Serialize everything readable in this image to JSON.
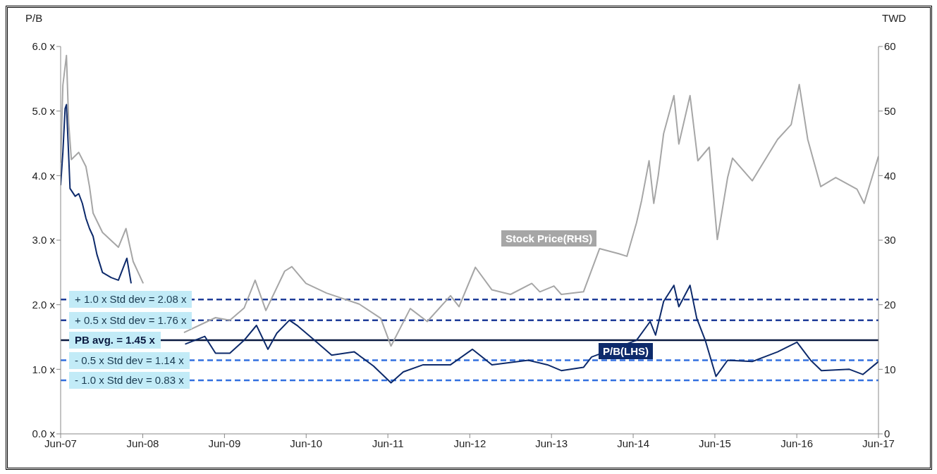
{
  "chart_data": {
    "type": "line",
    "ylabel": "P/B",
    "y2label": "TWD",
    "legend": false,
    "grid": false,
    "marker": "none",
    "line_style": "solid",
    "xlim": [
      "2007-06-29",
      "2017-06-30"
    ],
    "xticks": [
      {
        "value": "2007-06-29",
        "label": "Jun-07"
      },
      {
        "value": "2008-06-30",
        "label": "Jun-08"
      },
      {
        "value": "2009-06-30",
        "label": "Jun-09"
      },
      {
        "value": "2010-06-30",
        "label": "Jun-10"
      },
      {
        "value": "2011-06-30",
        "label": "Jun-11"
      },
      {
        "value": "2012-06-30",
        "label": "Jun-12"
      },
      {
        "value": "2013-06-30",
        "label": "Jun-13"
      },
      {
        "value": "2014-06-30",
        "label": "Jun-14"
      },
      {
        "value": "2015-06-30",
        "label": "Jun-15"
      },
      {
        "value": "2016-06-30",
        "label": "Jun-16"
      },
      {
        "value": "2017-06-30",
        "label": "Jun-17"
      }
    ],
    "ylim": [
      0,
      6
    ],
    "yticks": [
      {
        "value": 0,
        "label": "0.0 x"
      },
      {
        "value": 1,
        "label": "1.0 x"
      },
      {
        "value": 2,
        "label": "2.0 x"
      },
      {
        "value": 3,
        "label": "3.0 x"
      },
      {
        "value": 4,
        "label": "4.0 x"
      },
      {
        "value": 5,
        "label": "5.0 x"
      },
      {
        "value": 6,
        "label": "6.0 x"
      }
    ],
    "y2lim": [
      0,
      60
    ],
    "y2ticks": [
      0,
      10,
      20,
      30,
      40,
      50,
      60
    ],
    "series": [
      {
        "name": "Stock Price(RHS)",
        "axis": "y2",
        "color": "#a6a6a6",
        "x": [
          "2007-06-29",
          "2007-07-09",
          "2007-07-25",
          "2007-08-04",
          "2007-08-16",
          "2007-09-18",
          "2007-10-20",
          "2007-11-05",
          "2007-11-21",
          "2008-01-02",
          "2008-03-13",
          "2008-04-16",
          "2008-05-18",
          "2008-07-02",
          "2008-09-15",
          "2008-12-31",
          "2009-05-21",
          "2009-07-24",
          "2009-09-26",
          "2009-11-14",
          "2010-01-01",
          "2010-03-26",
          "2010-04-27",
          "2010-06-29",
          "2010-09-29",
          "2011-02-22",
          "2011-05-29",
          "2011-07-14",
          "2011-10-08",
          "2011-12-23",
          "2012-04-05",
          "2012-05-13",
          "2012-07-25",
          "2012-10-07",
          "2012-12-29",
          "2013-04-03",
          "2013-05-09",
          "2013-07-11",
          "2013-08-13",
          "2013-11-20",
          "2014-01-31",
          "2014-04-27",
          "2014-06-02",
          "2014-07-15",
          "2014-08-07",
          "2014-09-09",
          "2014-09-30",
          "2014-10-20",
          "2014-11-13",
          "2014-12-29",
          "2015-01-20",
          "2015-03-11",
          "2015-04-15",
          "2015-06-05",
          "2015-07-11",
          "2015-08-26",
          "2015-09-17",
          "2015-12-14",
          "2016-04-05",
          "2016-06-05",
          "2016-07-11",
          "2016-08-18",
          "2016-10-15",
          "2016-12-21",
          "2017-03-26",
          "2017-04-27",
          "2017-06-30"
        ],
        "values": [
          42,
          54,
          58.6,
          48.1,
          42.5,
          43.6,
          41.4,
          38.3,
          34.2,
          31.2,
          28.9,
          31.8,
          26.7,
          23.3,
          null,
          15.7,
          18,
          17.6,
          19.5,
          23.8,
          19.1,
          25.2,
          25.9,
          23.3,
          21.8,
          20.1,
          17.9,
          13.6,
          19.4,
          17.4,
          21.4,
          19.7,
          25.8,
          22.3,
          21.6,
          23.3,
          22,
          22.9,
          21.6,
          22,
          28.7,
          27.9,
          27.5,
          32.7,
          36.2,
          42.3,
          35.7,
          40,
          46.5,
          52.4,
          44.9,
          52.4,
          42.3,
          44.4,
          30.1,
          39.7,
          42.7,
          39.2,
          45.6,
          47.9,
          54.1,
          45.6,
          38.3,
          39.7,
          37.9,
          35.7,
          43
        ]
      },
      {
        "name": "P/B(LHS)",
        "axis": "y",
        "color": "#0d2a6b",
        "x": [
          "2007-06-29",
          "2007-07-09",
          "2007-07-19",
          "2007-07-25",
          "2007-08-04",
          "2007-08-10",
          "2007-09-02",
          "2007-09-18",
          "2007-10-04",
          "2007-10-20",
          "2007-11-05",
          "2007-11-21",
          "2007-12-08",
          "2008-01-02",
          "2008-02-10",
          "2008-03-13",
          "2008-04-20",
          "2008-05-09",
          "2008-06-01",
          "2008-07-02",
          "2008-09-15",
          "2009-01-05",
          "2009-04-03",
          "2009-05-21",
          "2009-07-24",
          "2009-09-26",
          "2009-11-20",
          "2010-01-10",
          "2010-02-19",
          "2010-04-16",
          "2010-05-24",
          "2010-07-27",
          "2010-10-22",
          "2011-01-31",
          "2011-04-27",
          "2011-07-14",
          "2011-09-07",
          "2011-12-05",
          "2012-04-05",
          "2012-07-12",
          "2012-10-07",
          "2013-03-18",
          "2013-06-12",
          "2013-08-13",
          "2013-11-20",
          "2013-12-26",
          "2014-07-15",
          "2014-09-14",
          "2014-10-08",
          "2014-11-13",
          "2014-12-29",
          "2015-01-20",
          "2015-03-11",
          "2015-04-10",
          "2015-05-18",
          "2015-07-05",
          "2015-08-26",
          "2015-12-14",
          "2016-04-05",
          "2016-07-01",
          "2016-08-31",
          "2016-10-18",
          "2017-02-20",
          "2017-04-21",
          "2017-06-30"
        ],
        "values": [
          3.85,
          4.36,
          5.04,
          5.1,
          4.3,
          3.8,
          3.68,
          3.72,
          3.57,
          3.34,
          3.18,
          3.06,
          2.78,
          2.5,
          2.42,
          2.38,
          2.72,
          2.33,
          null,
          null,
          null,
          1.39,
          1.51,
          1.25,
          1.25,
          1.45,
          1.68,
          1.31,
          1.56,
          1.76,
          1.67,
          1.48,
          1.22,
          1.27,
          1.05,
          0.79,
          0.96,
          1.07,
          1.07,
          1.31,
          1.07,
          1.14,
          1.07,
          0.98,
          1.03,
          1.19,
          1.45,
          1.74,
          1.53,
          2.05,
          2.3,
          1.97,
          2.3,
          1.79,
          1.45,
          0.89,
          1.14,
          1.12,
          1.27,
          1.42,
          1.14,
          0.98,
          1,
          0.92,
          1.12
        ]
      }
    ],
    "ref_lines": [
      {
        "axis": "y",
        "value": 2.08,
        "label": "+ 1.0 x Std dev = 2.08 x",
        "color": "#1f3d99",
        "line_style": "dashed"
      },
      {
        "axis": "y",
        "value": 1.76,
        "label": "+ 0.5 x Std dev = 1.76 x",
        "color": "#1f3d99",
        "line_style": "dashed"
      },
      {
        "axis": "y",
        "value": 1.45,
        "label": "PB avg. = 1.45 x",
        "color": "#0a1a40",
        "line_style": "solid"
      },
      {
        "axis": "y",
        "value": 1.14,
        "label": "- 0.5 x Std dev = 1.14 x",
        "color": "#3370e0",
        "line_style": "dashed"
      },
      {
        "axis": "y",
        "value": 0.83,
        "label": "- 1.0 x Std dev = 0.83 x",
        "color": "#3370e0",
        "line_style": "dashed"
      }
    ]
  }
}
